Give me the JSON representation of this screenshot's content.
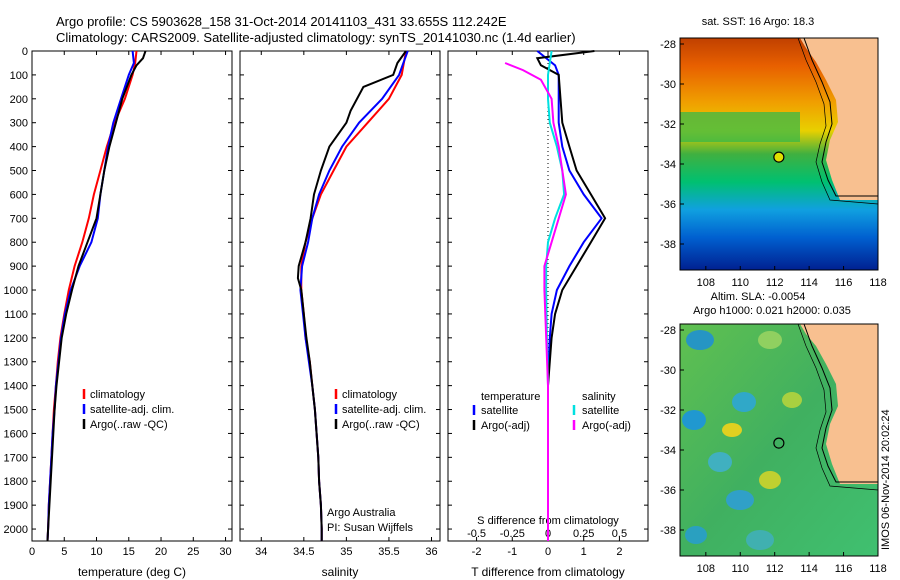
{
  "header": {
    "line1": "Argo profile: CS 5903628_158 31-Oct-2014 20141103_431 33.655S 112.242E",
    "line2": "Climatology: CARS2009. Satellite-adjusted climatology: synTS_20141030.nc (1.4d earlier)"
  },
  "credit": "IMOS 06-Nov-2014 20:02:24",
  "colors": {
    "climatology": "#ff0000",
    "satellite": "#0000ff",
    "argo": "#000000",
    "sat_salinity": "#00e0e0",
    "argo_salinity": "#ff00ff",
    "land": "#f8c090"
  },
  "chart_data": [
    {
      "type": "line",
      "xlabel": "temperature (deg C)",
      "xlim": [
        0,
        31
      ],
      "xticks": [
        "0",
        "5",
        "10",
        "15",
        "20",
        "25",
        "30"
      ],
      "ylim": [
        0,
        2050
      ],
      "yticks": [
        "0",
        "100",
        "200",
        "300",
        "400",
        "500",
        "600",
        "700",
        "800",
        "900",
        "1000",
        "1100",
        "1200",
        "1300",
        "1400",
        "1500",
        "1600",
        "1700",
        "1800",
        "1900",
        "2000"
      ],
      "legend": [
        "climatology",
        "satellite-adj. clim.",
        "Argo(..raw -QC)"
      ],
      "series": [
        {
          "name": "climatology",
          "color": "#ff0000",
          "points": [
            [
              16.2,
              0
            ],
            [
              16.0,
              50
            ],
            [
              15.6,
              100
            ],
            [
              14.4,
              200
            ],
            [
              12.8,
              300
            ],
            [
              11.6,
              400
            ],
            [
              10.6,
              500
            ],
            [
              9.6,
              600
            ],
            [
              8.8,
              700
            ],
            [
              7.8,
              800
            ],
            [
              6.6,
              900
            ],
            [
              5.7,
              1000
            ],
            [
              5.0,
              1100
            ],
            [
              4.4,
              1200
            ],
            [
              4.0,
              1300
            ],
            [
              3.7,
              1400
            ],
            [
              3.4,
              1500
            ],
            [
              3.2,
              1600
            ],
            [
              3.0,
              1700
            ],
            [
              2.8,
              1800
            ],
            [
              2.6,
              1900
            ],
            [
              2.5,
              2000
            ],
            [
              2.4,
              2050
            ]
          ]
        },
        {
          "name": "satellite-adj. clim.",
          "color": "#0000ff",
          "points": [
            [
              15.6,
              0
            ],
            [
              15.8,
              50
            ],
            [
              15.0,
              100
            ],
            [
              13.8,
              200
            ],
            [
              12.6,
              300
            ],
            [
              11.8,
              400
            ],
            [
              11.2,
              500
            ],
            [
              10.6,
              600
            ],
            [
              10.2,
              700
            ],
            [
              9.2,
              800
            ],
            [
              7.4,
              900
            ],
            [
              6.0,
              1000
            ],
            [
              5.1,
              1100
            ],
            [
              4.5,
              1200
            ],
            [
              4.1,
              1300
            ],
            [
              3.7,
              1400
            ],
            [
              3.5,
              1500
            ],
            [
              3.2,
              1600
            ],
            [
              3.0,
              1700
            ],
            [
              2.8,
              1800
            ],
            [
              2.6,
              1900
            ],
            [
              2.5,
              2000
            ],
            [
              2.4,
              2050
            ]
          ]
        },
        {
          "name": "Argo(..raw -QC)",
          "color": "#000000",
          "points": [
            [
              17.6,
              0
            ],
            [
              17.2,
              30
            ],
            [
              16.2,
              60
            ],
            [
              15.4,
              100
            ],
            [
              14.0,
              200
            ],
            [
              13.0,
              300
            ],
            [
              12.0,
              400
            ],
            [
              11.2,
              500
            ],
            [
              10.6,
              600
            ],
            [
              10.0,
              700
            ],
            [
              8.6,
              800
            ],
            [
              7.2,
              900
            ],
            [
              6.2,
              1000
            ],
            [
              5.3,
              1100
            ],
            [
              4.6,
              1200
            ],
            [
              4.2,
              1300
            ],
            [
              3.8,
              1400
            ],
            [
              3.5,
              1500
            ],
            [
              3.3,
              1600
            ],
            [
              3.1,
              1700
            ],
            [
              2.9,
              1800
            ],
            [
              2.7,
              1900
            ],
            [
              2.5,
              2000
            ],
            [
              2.4,
              2050
            ]
          ]
        }
      ]
    },
    {
      "type": "line",
      "xlabel": "salinity",
      "xlim": [
        33.75,
        36.1
      ],
      "xticks": [
        "34",
        "34.5",
        "35",
        "35.5",
        "36"
      ],
      "ylim": [
        0,
        2050
      ],
      "legend": [
        "climatology",
        "satellite-adj. clim.",
        "Argo(..raw -QC)"
      ],
      "annotation": [
        "Argo Australia",
        "PI: Susan Wijffels"
      ],
      "series": [
        {
          "name": "climatology",
          "color": "#ff0000",
          "points": [
            [
              35.7,
              0
            ],
            [
              35.65,
              100
            ],
            [
              35.5,
              200
            ],
            [
              35.25,
              300
            ],
            [
              35.0,
              400
            ],
            [
              34.85,
              500
            ],
            [
              34.7,
              600
            ],
            [
              34.6,
              700
            ],
            [
              34.52,
              800
            ],
            [
              34.47,
              900
            ],
            [
              34.47,
              1000
            ],
            [
              34.5,
              1100
            ],
            [
              34.52,
              1200
            ],
            [
              34.57,
              1300
            ],
            [
              34.6,
              1400
            ],
            [
              34.63,
              1500
            ],
            [
              34.65,
              1600
            ],
            [
              34.67,
              1700
            ],
            [
              34.68,
              1800
            ],
            [
              34.7,
              1900
            ],
            [
              34.71,
              2000
            ],
            [
              34.71,
              2050
            ]
          ]
        },
        {
          "name": "satellite-adj. clim.",
          "color": "#0000ff",
          "points": [
            [
              35.72,
              0
            ],
            [
              35.62,
              100
            ],
            [
              35.42,
              200
            ],
            [
              35.15,
              300
            ],
            [
              34.95,
              400
            ],
            [
              34.8,
              500
            ],
            [
              34.68,
              600
            ],
            [
              34.6,
              700
            ],
            [
              34.55,
              800
            ],
            [
              34.48,
              900
            ],
            [
              34.46,
              1000
            ],
            [
              34.49,
              1100
            ],
            [
              34.52,
              1200
            ],
            [
              34.56,
              1300
            ],
            [
              34.6,
              1400
            ],
            [
              34.63,
              1500
            ],
            [
              34.65,
              1600
            ],
            [
              34.67,
              1700
            ],
            [
              34.68,
              1800
            ],
            [
              34.7,
              1900
            ],
            [
              34.71,
              2000
            ],
            [
              34.71,
              2050
            ]
          ]
        },
        {
          "name": "Argo(..raw -QC)",
          "color": "#000000",
          "points": [
            [
              35.7,
              0
            ],
            [
              35.6,
              50
            ],
            [
              35.55,
              100
            ],
            [
              35.2,
              150
            ],
            [
              35.05,
              250
            ],
            [
              35.0,
              300
            ],
            [
              34.8,
              400
            ],
            [
              34.7,
              500
            ],
            [
              34.62,
              600
            ],
            [
              34.58,
              700
            ],
            [
              34.52,
              800
            ],
            [
              34.44,
              900
            ],
            [
              34.43,
              950
            ],
            [
              34.47,
              1000
            ],
            [
              34.5,
              1100
            ],
            [
              34.53,
              1200
            ],
            [
              34.57,
              1300
            ],
            [
              34.6,
              1400
            ],
            [
              34.63,
              1500
            ],
            [
              34.65,
              1600
            ],
            [
              34.67,
              1700
            ],
            [
              34.68,
              1800
            ],
            [
              34.7,
              1900
            ],
            [
              34.71,
              2000
            ],
            [
              34.71,
              2050
            ]
          ]
        }
      ]
    },
    {
      "type": "line",
      "xlabel": "T difference from climatology",
      "xlabel_top": "S difference from climatology",
      "xlim": [
        -2.8,
        2.8
      ],
      "xticks": [
        "-2",
        "-1",
        "0",
        "1",
        "2"
      ],
      "xticks_top": [
        "-0.5",
        "-0.25",
        "0",
        "0.25",
        "0.5"
      ],
      "ylim": [
        0,
        2050
      ],
      "legend_left": {
        "header": "temperature",
        "items": [
          "satellite",
          "Argo(-adj)"
        ]
      },
      "legend_right": {
        "header": "salinity",
        "items": [
          "satellite",
          "Argo(-adj)"
        ]
      },
      "series": [
        {
          "name": "satellite",
          "color": "#0000ff",
          "points": [
            [
              -0.3,
              0
            ],
            [
              0.2,
              60
            ],
            [
              0.3,
              100
            ],
            [
              0.3,
              200
            ],
            [
              0.3,
              300
            ],
            [
              0.4,
              400
            ],
            [
              0.6,
              500
            ],
            [
              1.0,
              600
            ],
            [
              1.5,
              700
            ],
            [
              1.0,
              800
            ],
            [
              0.6,
              900
            ],
            [
              0.25,
              1000
            ],
            [
              0.1,
              1100
            ],
            [
              0.05,
              1200
            ],
            [
              0.02,
              1300
            ],
            [
              0.0,
              1400
            ],
            [
              0.0,
              2050
            ]
          ]
        },
        {
          "name": "Argo(-adj)",
          "color": "#000000",
          "points": [
            [
              1.3,
              0
            ],
            [
              -0.3,
              30
            ],
            [
              -0.2,
              60
            ],
            [
              0.3,
              100
            ],
            [
              0.35,
              200
            ],
            [
              0.4,
              300
            ],
            [
              0.6,
              400
            ],
            [
              0.8,
              500
            ],
            [
              1.2,
              600
            ],
            [
              1.6,
              700
            ],
            [
              1.2,
              800
            ],
            [
              0.8,
              900
            ],
            [
              0.4,
              1000
            ],
            [
              0.2,
              1100
            ],
            [
              0.1,
              1200
            ],
            [
              0.05,
              1300
            ],
            [
              0.0,
              1400
            ],
            [
              0.0,
              2050
            ]
          ]
        },
        {
          "name": "satellite",
          "color": "#00e0e0",
          "points": [
            [
              0.1,
              0
            ],
            [
              0.0,
              100
            ],
            [
              0.0,
              200
            ],
            [
              0.05,
              300
            ],
            [
              0.25,
              400
            ],
            [
              0.4,
              500
            ],
            [
              0.45,
              600
            ],
            [
              0.2,
              700
            ],
            [
              0.0,
              800
            ],
            [
              -0.05,
              900
            ],
            [
              -0.05,
              1000
            ],
            [
              -0.03,
              1200
            ],
            [
              0.0,
              1400
            ],
            [
              0.0,
              2050
            ]
          ]
        },
        {
          "name": "Argo(-adj)",
          "color": "#ff00ff",
          "points": [
            [
              -1.2,
              50
            ],
            [
              -0.7,
              80
            ],
            [
              -0.2,
              120
            ],
            [
              0.1,
              200
            ],
            [
              0.15,
              300
            ],
            [
              0.3,
              400
            ],
            [
              0.5,
              600
            ],
            [
              0.1,
              800
            ],
            [
              -0.1,
              900
            ],
            [
              -0.1,
              1000
            ],
            [
              -0.05,
              1200
            ],
            [
              0.0,
              1400
            ],
            [
              0.0,
              2050
            ]
          ]
        }
      ]
    },
    {
      "type": "heatmap",
      "title": "sat. SST: 16 Argo: 18.3",
      "xlim": [
        106.5,
        118
      ],
      "ylim": [
        -39.3,
        -27.7
      ],
      "xticks": [
        "108",
        "110",
        "112",
        "114",
        "116",
        "118"
      ],
      "yticks": [
        "-28",
        "-30",
        "-32",
        "-34",
        "-36",
        "-38"
      ],
      "marker": {
        "lon": 112.242,
        "lat": -33.655
      }
    },
    {
      "type": "heatmap",
      "title": "Altim. SLA: -0.0054",
      "subtitle": "Argo h1000: 0.021 h2000: 0.035",
      "xlim": [
        106.5,
        118
      ],
      "ylim": [
        -39.3,
        -27.7
      ],
      "xticks": [
        "108",
        "110",
        "112",
        "114",
        "116",
        "118"
      ],
      "yticks": [
        "-28",
        "-30",
        "-32",
        "-34",
        "-36",
        "-38"
      ],
      "marker": {
        "lon": 112.242,
        "lat": -33.655
      }
    }
  ]
}
